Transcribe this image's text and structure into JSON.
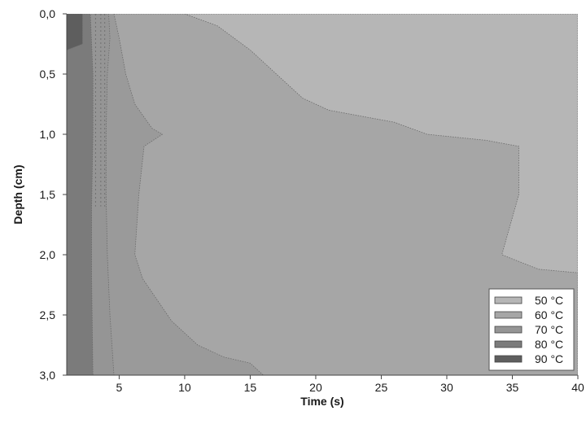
{
  "chart_data": {
    "type": "heatmap",
    "subtype": "filled-contour",
    "title": "",
    "xlabel": "Time (s)",
    "ylabel": "Depth (cm)",
    "xlim": [
      1,
      40
    ],
    "ylim": [
      0,
      3.0
    ],
    "y_axis_inverted": true,
    "x_ticks": [
      5,
      10,
      15,
      20,
      25,
      30,
      35,
      40
    ],
    "x_tick_labels": [
      "5",
      "10",
      "15",
      "20",
      "25",
      "30",
      "35",
      "40"
    ],
    "y_ticks": [
      0,
      0.5,
      1.0,
      1.5,
      2.0,
      2.5,
      3.0
    ],
    "y_tick_labels": [
      "0,0",
      "0,5",
      "1,0",
      "1,5",
      "2,0",
      "2,5",
      "3,0"
    ],
    "grid": false,
    "legend": {
      "placement": "bottom-right",
      "entries": [
        {
          "label": "50 °C",
          "color": "#b6b6b6"
        },
        {
          "label": "60 °C",
          "color": "#a6a6a6"
        },
        {
          "label": "70 °C",
          "color": "#959595"
        },
        {
          "label": "80 °C",
          "color": "#7b7b7b"
        },
        {
          "label": "90 °C",
          "color": "#5e5e5e"
        }
      ]
    },
    "levels": [
      {
        "label": "90 °C",
        "color": "#5e5e5e",
        "boundary": [
          [
            1,
            0
          ],
          [
            2.2,
            0
          ],
          [
            2.2,
            0.25
          ],
          [
            1,
            0.3
          ]
        ]
      },
      {
        "label": "80 °C",
        "color": "#7b7b7b",
        "boundary": [
          [
            1,
            0
          ],
          [
            2.8,
            0
          ],
          [
            3.0,
            0.5
          ],
          [
            3.0,
            1.0
          ],
          [
            2.9,
            1.6
          ],
          [
            2.9,
            2.2
          ],
          [
            3.0,
            3.0
          ],
          [
            1,
            3.0
          ]
        ]
      },
      {
        "label": "70 °C",
        "color": "#959595",
        "boundary": [
          [
            1,
            0
          ],
          [
            4.2,
            0
          ],
          [
            4.3,
            0.2
          ],
          [
            4.1,
            0.5
          ],
          [
            4.0,
            1.0
          ],
          [
            4.0,
            1.5
          ],
          [
            4.1,
            2.0
          ],
          [
            4.3,
            2.5
          ],
          [
            4.6,
            3.0
          ],
          [
            1,
            3.0
          ]
        ]
      },
      {
        "label": "60 °C",
        "color": "#a6a6a6",
        "boundary": [
          [
            4.6,
            0
          ],
          [
            5.0,
            0.2
          ],
          [
            5.5,
            0.5
          ],
          [
            6.2,
            0.75
          ],
          [
            7.5,
            0.95
          ],
          [
            8.3,
            1.0
          ],
          [
            6.9,
            1.1
          ],
          [
            6.5,
            1.5
          ],
          [
            6.2,
            2.0
          ],
          [
            6.8,
            2.2
          ],
          [
            9.0,
            2.55
          ],
          [
            11.0,
            2.75
          ],
          [
            13.0,
            2.85
          ],
          [
            15.0,
            2.9
          ],
          [
            16.0,
            3.0
          ],
          [
            40,
            3.0
          ],
          [
            40,
            0
          ]
        ]
      },
      {
        "label": "50 °C",
        "color": "#b6b6b6",
        "boundary": [
          [
            10.0,
            0
          ],
          [
            12.5,
            0.1
          ],
          [
            15.0,
            0.3
          ],
          [
            17.0,
            0.5
          ],
          [
            19.0,
            0.7
          ],
          [
            21.0,
            0.8
          ],
          [
            23.5,
            0.85
          ],
          [
            26.0,
            0.9
          ],
          [
            28.5,
            1.0
          ],
          [
            33.0,
            1.05
          ],
          [
            35.5,
            1.1
          ],
          [
            35.5,
            1.5
          ],
          [
            34.2,
            2.0
          ],
          [
            37.0,
            2.12
          ],
          [
            40,
            2.15
          ],
          [
            40,
            0
          ]
        ]
      }
    ]
  }
}
